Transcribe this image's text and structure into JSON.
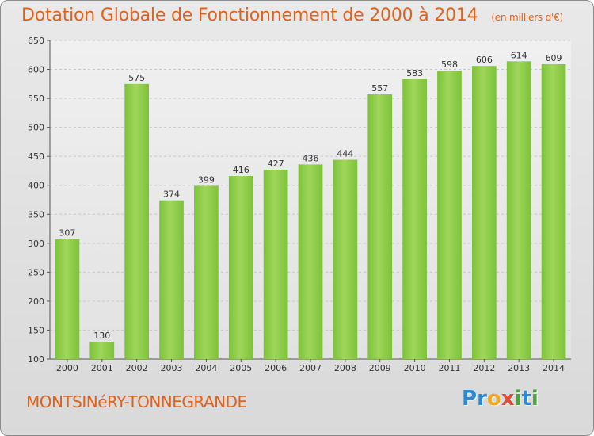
{
  "header": {
    "title": "Dotation Globale de Fonctionnement de 2000 à 2014",
    "unit": "(en milliers d'€)"
  },
  "footer": {
    "city": "MONTSINéRY-TONNEGRANDE",
    "logo_letters": [
      "P",
      "r",
      "o",
      "x",
      "i",
      "t",
      "i"
    ],
    "logo_colors": [
      "#2a8ad6",
      "#2a8ad6",
      "#f5a623",
      "#e04a3a",
      "#4aa63a",
      "#2a8ad6",
      "#4aa63a"
    ]
  },
  "chart_data": {
    "type": "bar",
    "categories": [
      "2000",
      "2001",
      "2002",
      "2003",
      "2004",
      "2005",
      "2006",
      "2007",
      "2008",
      "2009",
      "2010",
      "2011",
      "2012",
      "2013",
      "2014"
    ],
    "values": [
      307,
      130,
      575,
      374,
      399,
      416,
      427,
      436,
      444,
      557,
      583,
      598,
      606,
      614,
      609
    ],
    "title": "Dotation Globale de Fonctionnement de 2000 à 2014",
    "ylim": [
      100,
      650
    ],
    "yticks": [
      100,
      150,
      200,
      250,
      300,
      350,
      400,
      450,
      500,
      550,
      600,
      650
    ],
    "grid": true,
    "bar_color": "#7dc23a",
    "bar_color_light": "#9fd65a"
  }
}
